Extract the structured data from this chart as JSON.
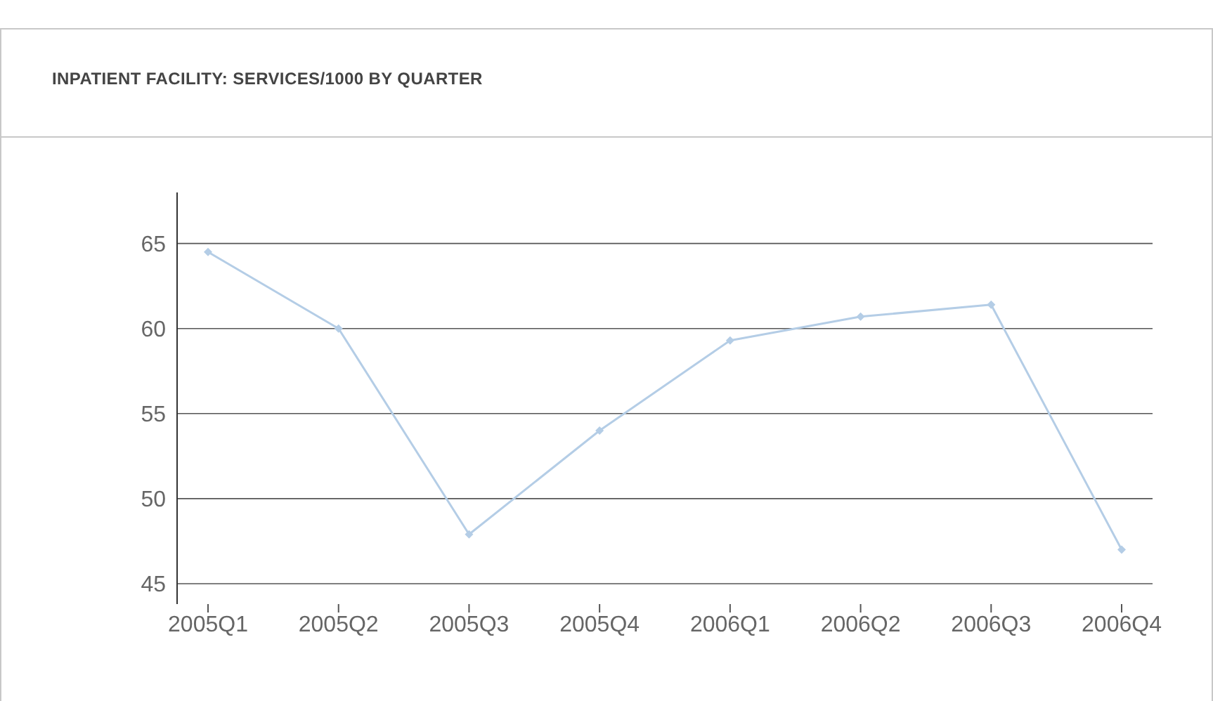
{
  "chart_data": {
    "type": "line",
    "title": "INPATIENT FACILITY: SERVICES/1000 BY QUARTER",
    "categories": [
      "2005Q1",
      "2005Q2",
      "2005Q3",
      "2005Q4",
      "2006Q1",
      "2006Q2",
      "2006Q3",
      "2006Q4"
    ],
    "series": [
      {
        "color": "#b4cde6",
        "values": [
          64.5,
          60.0,
          47.9,
          54.0,
          59.3,
          60.7,
          61.4,
          47.0
        ]
      }
    ],
    "ylim": [
      43.8,
      68
    ],
    "yticks": [
      45,
      50,
      55,
      60,
      65
    ],
    "grid": "y",
    "marker": "diamond",
    "line_style": "solid",
    "legend": false
  }
}
